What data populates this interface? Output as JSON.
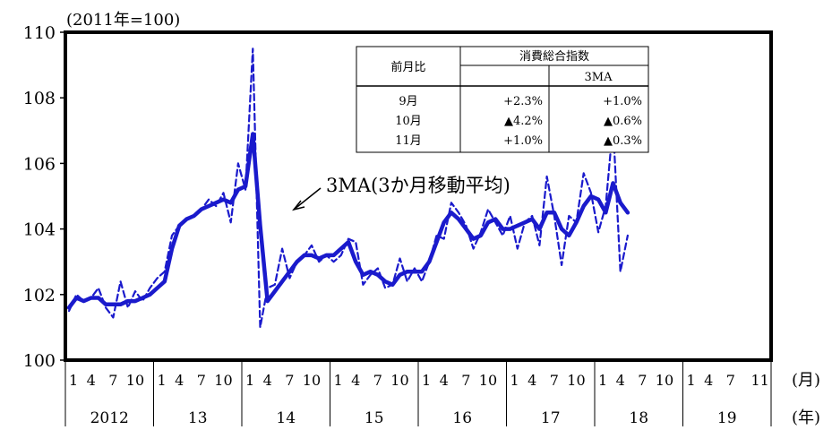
{
  "chart_data": {
    "type": "line",
    "unit_label": "(2011年=100)",
    "ylim": [
      100,
      110
    ],
    "yticks": [
      "100",
      "102",
      "104",
      "106",
      "108",
      "110"
    ],
    "x_month_labels": [
      "1",
      "4",
      "7",
      "10"
    ],
    "x_last_month_labels": [
      "1",
      "4",
      "7",
      "11"
    ],
    "x_unit_month": "(月)",
    "x_unit_year": "(年)",
    "years": [
      "2012",
      "13",
      "14",
      "15",
      "16",
      "17",
      "18",
      "19"
    ],
    "annotation": "3MA(3か月移動平均)",
    "series": [
      {
        "style": "dashed",
        "values": [
          101.5,
          102.0,
          101.8,
          101.9,
          102.2,
          101.6,
          101.3,
          102.4,
          101.6,
          102.1,
          101.8,
          102.2,
          102.5,
          102.7,
          103.8,
          104.1,
          104.3,
          104.4,
          104.6,
          104.9,
          104.7,
          105.1,
          104.2,
          106.0,
          105.2,
          109.5,
          101.0,
          102.2,
          102.3,
          103.4,
          102.5,
          103.0,
          103.2,
          103.5,
          103.0,
          103.2,
          103.0,
          103.2,
          103.7,
          103.6,
          102.3,
          102.6,
          102.8,
          102.2,
          102.3,
          103.1,
          102.4,
          102.8,
          102.4,
          103.0,
          103.8,
          103.7,
          104.8,
          104.5,
          104.1,
          103.4,
          103.9,
          104.6,
          104.2,
          103.8,
          104.4,
          103.4,
          104.2,
          104.4,
          103.5,
          105.6,
          104.4,
          102.9,
          104.4,
          104.2,
          105.7,
          105.1,
          103.9,
          104.7,
          107.2,
          102.7,
          103.8
        ]
      },
      {
        "name": "3MA",
        "style": "solid",
        "values": [
          101.6,
          101.9,
          101.8,
          101.9,
          101.9,
          101.7,
          101.7,
          101.7,
          101.8,
          101.8,
          101.9,
          102.0,
          102.2,
          102.4,
          103.4,
          104.1,
          104.3,
          104.4,
          104.6,
          104.7,
          104.8,
          104.9,
          104.8,
          105.2,
          105.3,
          106.9,
          104.1,
          101.8,
          102.1,
          102.4,
          102.7,
          103.0,
          103.2,
          103.2,
          103.1,
          103.2,
          103.2,
          103.4,
          103.6,
          103.0,
          102.6,
          102.7,
          102.6,
          102.4,
          102.3,
          102.6,
          102.7,
          102.7,
          102.7,
          103.0,
          103.6,
          104.2,
          104.5,
          104.3,
          104.0,
          103.7,
          103.8,
          104.2,
          104.3,
          104.0,
          104.0,
          104.1,
          104.2,
          104.3,
          104.0,
          104.5,
          104.5,
          104.0,
          103.8,
          104.2,
          104.7,
          105.0,
          104.9,
          104.5,
          105.4,
          104.8,
          104.5
        ]
      }
    ],
    "table": {
      "header_left": "前月比",
      "header_right": "消費総合指数",
      "subheader": "3MA",
      "rows": [
        {
          "month": "9月",
          "value": "+2.3%",
          "ma": "+1.0%"
        },
        {
          "month": "10月",
          "value": "▲4.2%",
          "ma": "▲0.6%"
        },
        {
          "month": "11月",
          "value": "+1.0%",
          "ma": "▲0.3%"
        }
      ]
    },
    "colors": {
      "series": "#1a1acc",
      "frame": "#000000"
    },
    "grid": false
  }
}
